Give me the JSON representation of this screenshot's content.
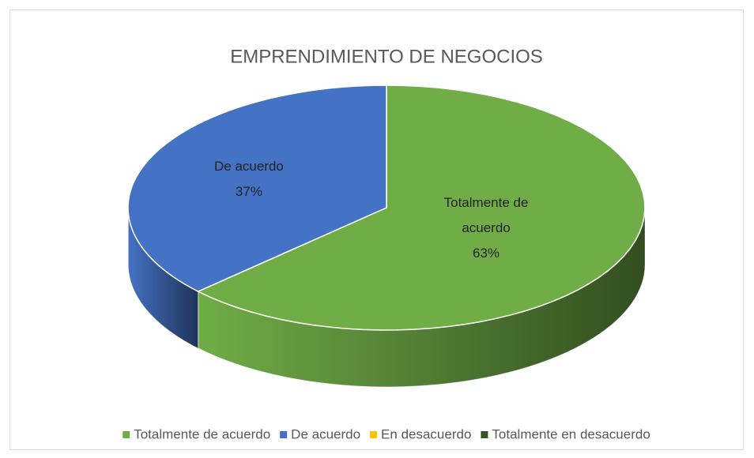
{
  "chart_data": {
    "type": "pie3d",
    "title": "EMPRENDIMIENTO DE NEGOCIOS",
    "categories": [
      "Totalmente de acuerdo",
      "De acuerdo",
      "En desacuerdo",
      "Totalmente en desacuerdo"
    ],
    "values": [
      63,
      37,
      0,
      0
    ],
    "value_labels": [
      "63%",
      "37%",
      null,
      null
    ],
    "colors": [
      "#70ad47",
      "#4472c4",
      "#ffc000",
      "#375623"
    ],
    "legend": "bottom"
  }
}
